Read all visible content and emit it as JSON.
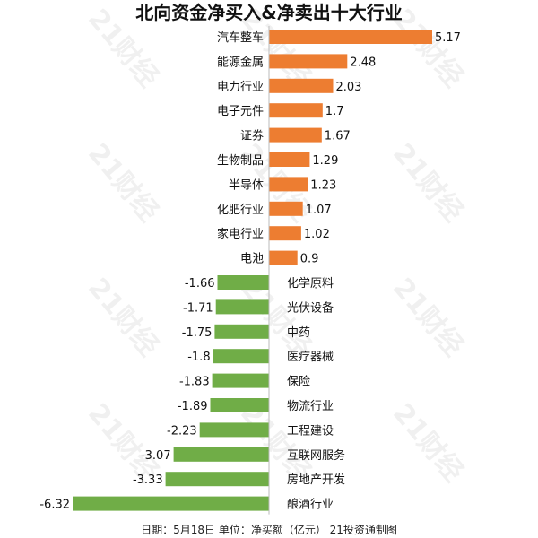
{
  "chart_data": {
    "type": "bar",
    "orientation": "horizontal",
    "title": "北向资金净买入&净卖出十大行业",
    "categories": [
      "汽车整车",
      "能源金属",
      "电力行业",
      "电子元件",
      "证券",
      "生物制品",
      "半导体",
      "化肥行业",
      "家电行业",
      "电池",
      "化学原料",
      "光伏设备",
      "中药",
      "医疗器械",
      "保险",
      "物流行业",
      "工程建设",
      "互联网服务",
      "房地产开发",
      "酿酒行业"
    ],
    "values": [
      5.17,
      2.48,
      2.03,
      1.7,
      1.67,
      1.29,
      1.23,
      1.07,
      1.02,
      0.9,
      -1.66,
      -1.71,
      -1.75,
      -1.8,
      -1.83,
      -1.89,
      -2.23,
      -3.07,
      -3.33,
      -6.32
    ],
    "value_labels": [
      "5.17",
      "2.48",
      "2.03",
      "1.7",
      "1.67",
      "1.29",
      "1.23",
      "1.07",
      "1.02",
      "0.9",
      "-1.66",
      "-1.71",
      "-1.75",
      "-1.8",
      "-1.83",
      "-1.89",
      "-2.23",
      "-3.07",
      "-3.33",
      "-6.32"
    ],
    "xlim": [
      -6.32,
      5.17
    ],
    "legend": "none",
    "grid": false,
    "colors": {
      "positive": "#ED7D31",
      "negative": "#70AD47"
    }
  },
  "footer": "日期：5月18日 单位：净买额（亿元） 21投资通制图",
  "watermark": "21财经"
}
